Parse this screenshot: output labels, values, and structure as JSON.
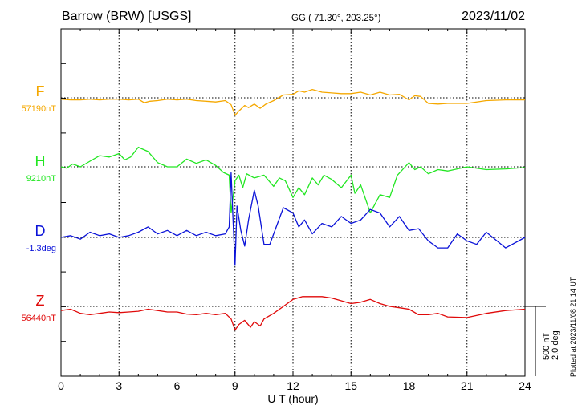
{
  "header": {
    "station": "Barrow (BRW)  [USGS]",
    "coords": "GG ( 71.30°, 203.25°)",
    "date": "2023/11/02"
  },
  "footer": {
    "plotted": "Plotted at 2023/11/08 21:14 UT"
  },
  "chart_data": {
    "type": "line",
    "title": "Barrow (BRW)  [USGS]",
    "xlabel": "U T (hour)",
    "ylabel": "",
    "xlim": [
      0,
      24
    ],
    "x_ticks": [
      "0",
      "3",
      "6",
      "9",
      "12",
      "15",
      "18",
      "21",
      "24"
    ],
    "grid": true,
    "scale": {
      "label_1": "500 nT",
      "label_2": "2.0 deg"
    },
    "series": [
      {
        "name": "F",
        "baseline_label": "57190nT",
        "color": "#f5a800",
        "x": [
          0,
          0.5,
          1,
          1.5,
          2,
          2.5,
          3,
          3.5,
          4,
          4.3,
          4.6,
          5,
          5.5,
          6,
          6.5,
          7,
          7.5,
          8,
          8.5,
          8.8,
          9.0,
          9.2,
          9.5,
          9.7,
          10,
          10.3,
          10.6,
          11,
          11.5,
          12,
          12.3,
          12.6,
          13,
          13.5,
          14,
          14.5,
          15,
          15.5,
          16,
          16.5,
          17,
          17.5,
          18,
          18.3,
          18.6,
          19,
          19.5,
          20,
          21,
          22,
          23,
          24
        ],
        "y": [
          -10,
          -15,
          -15,
          -10,
          -15,
          -10,
          -10,
          -15,
          -10,
          -35,
          -25,
          -20,
          -10,
          -15,
          -10,
          -20,
          -25,
          -30,
          -20,
          -50,
          -125,
          -95,
          -55,
          -70,
          -45,
          -75,
          -45,
          -20,
          20,
          25,
          50,
          40,
          60,
          40,
          35,
          30,
          30,
          40,
          20,
          40,
          20,
          25,
          -15,
          15,
          10,
          -40,
          -45,
          -40,
          -40,
          -20,
          -15,
          -15
        ]
      },
      {
        "name": "H",
        "baseline_label": "9210nT",
        "color": "#22e622",
        "x": [
          0,
          0.3,
          0.6,
          1,
          1.5,
          2,
          2.5,
          3,
          3.3,
          3.6,
          4,
          4.5,
          5,
          5.5,
          6,
          6.5,
          7,
          7.5,
          8,
          8.4,
          8.7,
          8.8,
          9.0,
          9.2,
          9.4,
          9.6,
          10,
          10.5,
          11,
          11.3,
          11.6,
          12,
          12.3,
          12.6,
          13,
          13.3,
          13.6,
          14,
          14.5,
          15,
          15.2,
          15.5,
          16,
          16.5,
          17,
          17.4,
          18,
          18.3,
          18.6,
          19,
          19.5,
          20,
          21,
          22,
          23,
          24
        ],
        "y": [
          0,
          -10,
          20,
          0,
          40,
          80,
          70,
          95,
          50,
          70,
          140,
          110,
          30,
          0,
          0,
          55,
          25,
          50,
          10,
          -40,
          -60,
          -330,
          -100,
          -60,
          -150,
          -50,
          -80,
          -60,
          -140,
          -80,
          -100,
          -220,
          -150,
          -200,
          -80,
          -130,
          -60,
          -90,
          -150,
          -60,
          -190,
          -130,
          -330,
          -200,
          -220,
          -60,
          30,
          -20,
          0,
          -50,
          -20,
          -30,
          0,
          -20,
          -15,
          -5
        ]
      },
      {
        "name": "D",
        "baseline_label": "-1.3deg",
        "color": "#0a12d8",
        "x": [
          0,
          0.5,
          1,
          1.5,
          2,
          2.5,
          3,
          3.5,
          4,
          4.5,
          5,
          5.5,
          6,
          6.5,
          7,
          7.5,
          8,
          8.5,
          8.7,
          8.8,
          8.9,
          9.0,
          9.1,
          9.3,
          9.5,
          9.7,
          10.0,
          10.2,
          10.5,
          10.8,
          11,
          11.5,
          12,
          12.3,
          12.6,
          13,
          13.5,
          14,
          14.5,
          15,
          15.5,
          16,
          16.5,
          17,
          17.5,
          18,
          18.5,
          19,
          19.5,
          20,
          20.5,
          21,
          21.5,
          22,
          23,
          24
        ],
        "y": [
          0,
          0.05,
          -0.05,
          0.15,
          0.05,
          0.1,
          0,
          0.05,
          0.15,
          0.3,
          0.1,
          0.2,
          0.05,
          0.2,
          0.05,
          0.15,
          0.05,
          0.1,
          0.3,
          1.85,
          0.5,
          -0.8,
          0.9,
          0.2,
          -0.25,
          0.5,
          1.35,
          0.9,
          -0.2,
          -0.2,
          0.1,
          0.85,
          0.7,
          0.3,
          0.5,
          0.1,
          0.4,
          0.3,
          0.6,
          0.4,
          0.5,
          0.8,
          0.7,
          0.3,
          0.6,
          0.2,
          0.25,
          -0.1,
          -0.3,
          -0.3,
          0.1,
          -0.1,
          -0.2,
          0.15,
          -0.3,
          0
        ]
      },
      {
        "name": "Z",
        "baseline_label": "56440nT",
        "color": "#e00a0a",
        "x": [
          0,
          0.5,
          1,
          1.5,
          2,
          2.5,
          3,
          3.5,
          4,
          4.5,
          5,
          5.5,
          6,
          6.5,
          7,
          7.5,
          8,
          8.5,
          8.8,
          9.0,
          9.2,
          9.5,
          9.8,
          10,
          10.3,
          10.5,
          11,
          11.5,
          12,
          12.5,
          13,
          13.5,
          14,
          14.5,
          15,
          15.5,
          16,
          16.5,
          17,
          17.5,
          18,
          18.5,
          19,
          19.5,
          20,
          21,
          22,
          23,
          24
        ],
        "y": [
          -30,
          -20,
          -50,
          -60,
          -50,
          -40,
          -45,
          -40,
          -35,
          -20,
          -30,
          -40,
          -40,
          -55,
          -60,
          -50,
          -60,
          -50,
          -90,
          -170,
          -130,
          -100,
          -150,
          -110,
          -140,
          -90,
          -50,
          0,
          50,
          70,
          70,
          70,
          60,
          40,
          20,
          30,
          50,
          20,
          0,
          -10,
          -20,
          -60,
          -60,
          -50,
          -75,
          -80,
          -50,
          -30,
          -20
        ]
      }
    ]
  }
}
